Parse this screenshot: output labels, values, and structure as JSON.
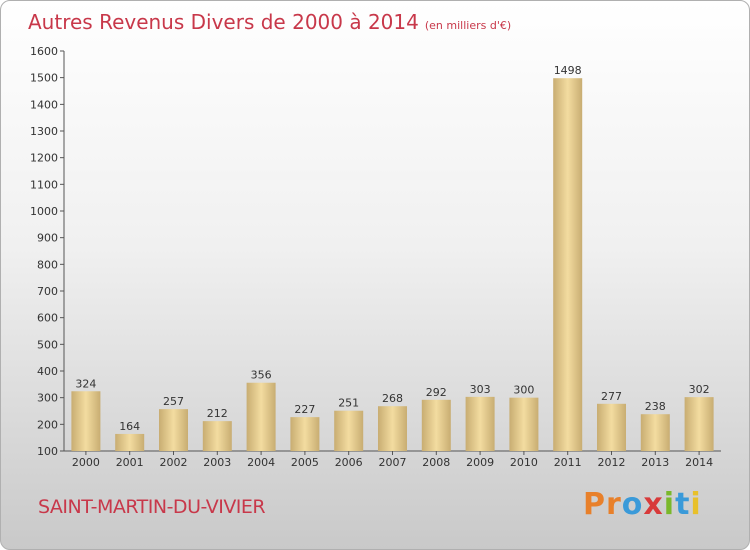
{
  "header": {
    "title": "Autres Revenus Divers de 2000 à 2014",
    "unit": "(en milliers d'€)"
  },
  "footer": {
    "city": "SAINT-MARTIN-DU-VIVIER",
    "logo": "Proxiti"
  },
  "colors": {
    "title": "#c8384a",
    "bar_light": "#f3dca0",
    "bar_dark": "#c8ad72",
    "logo_letters": [
      "#e8802a",
      "#e8802a",
      "#3a9ad9",
      "#d83a3a",
      "#7ab82a",
      "#3a9ad9",
      "#e8c02a"
    ]
  },
  "chart_data": {
    "type": "bar",
    "title": "Autres Revenus Divers de 2000 à 2014",
    "subtitle": "(en milliers d'€)",
    "categories": [
      "2000",
      "2001",
      "2002",
      "2003",
      "2004",
      "2005",
      "2006",
      "2007",
      "2008",
      "2009",
      "2010",
      "2011",
      "2012",
      "2013",
      "2014"
    ],
    "values": [
      324,
      164,
      257,
      212,
      356,
      227,
      251,
      268,
      292,
      303,
      300,
      1498,
      277,
      238,
      302
    ],
    "ylim": [
      100,
      1600
    ],
    "yticks": [
      100,
      200,
      300,
      400,
      500,
      600,
      700,
      800,
      900,
      1000,
      1100,
      1200,
      1300,
      1400,
      1500,
      1600
    ],
    "grid": false,
    "data_labels": true
  }
}
